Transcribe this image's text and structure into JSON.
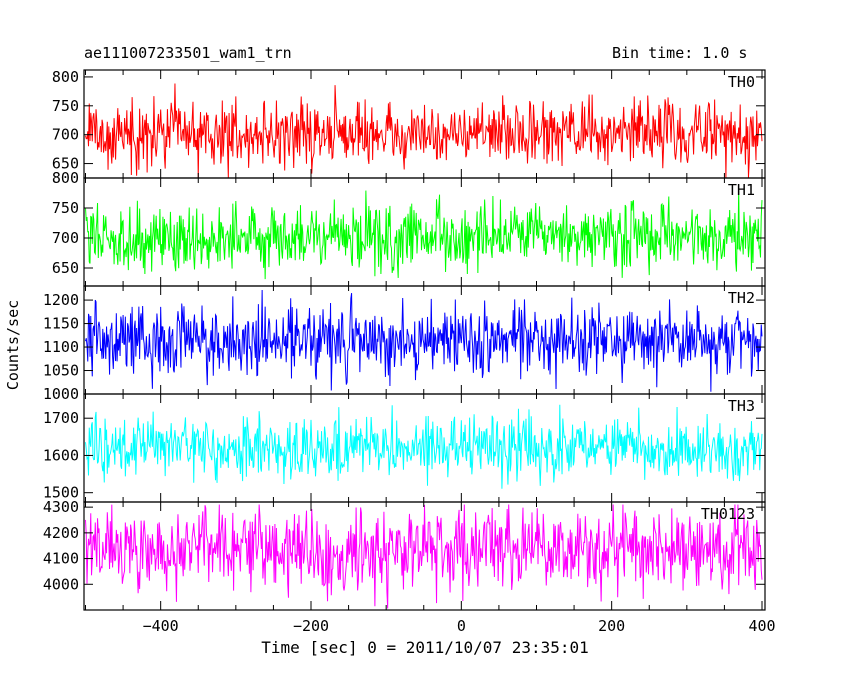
{
  "chart_data": {
    "type": "line",
    "title": "ae111007233501_wam1_trn",
    "bin_time_label": "Bin time: 1.0 s",
    "xlabel": "Time [sec] 0 = 2011/10/07 23:35:01",
    "ylabel": "Counts/sec",
    "xlim": [
      -502,
      404
    ],
    "x_range": [
      -500,
      400
    ],
    "x_step": 1,
    "x_ticks": [
      -400,
      -200,
      0,
      200,
      400
    ],
    "x_tick_labels": [
      "−400",
      "−200",
      "0",
      "200",
      "400"
    ],
    "grid": false,
    "legend": "none",
    "series": [
      {
        "name": "TH0",
        "color": "#ff0000",
        "mean": 700,
        "spread": 28,
        "min": 625,
        "max": 805,
        "trend": 4,
        "ylim": [
          625,
          812
        ],
        "ticks": [
          650,
          700,
          750,
          800
        ]
      },
      {
        "name": "TH1",
        "color": "#00ff00",
        "mean": 701,
        "spread": 28,
        "min": 625,
        "max": 800,
        "trend": 0,
        "ylim": [
          620,
          800
        ],
        "ticks": [
          650,
          700,
          750,
          800
        ]
      },
      {
        "name": "TH2",
        "color": "#0000ff",
        "mean": 1115,
        "spread": 38,
        "min": 1000,
        "max": 1225,
        "trend": 0,
        "ylim": [
          1000,
          1230
        ],
        "ticks": [
          1000,
          1050,
          1100,
          1150,
          1200
        ]
      },
      {
        "name": "TH3",
        "color": "#00ffff",
        "mean": 1620,
        "spread": 40,
        "min": 1480,
        "max": 1760,
        "trend": 0,
        "ylim": [
          1475,
          1765
        ],
        "ticks": [
          1500,
          1600,
          1700
        ]
      },
      {
        "name": "TH0123",
        "color": "#ff00ff",
        "mean": 4135,
        "spread": 80,
        "min": 3905,
        "max": 4310,
        "trend": 0,
        "ylim": [
          3900,
          4320
        ],
        "ticks": [
          4000,
          4100,
          4200,
          4300
        ]
      }
    ]
  }
}
